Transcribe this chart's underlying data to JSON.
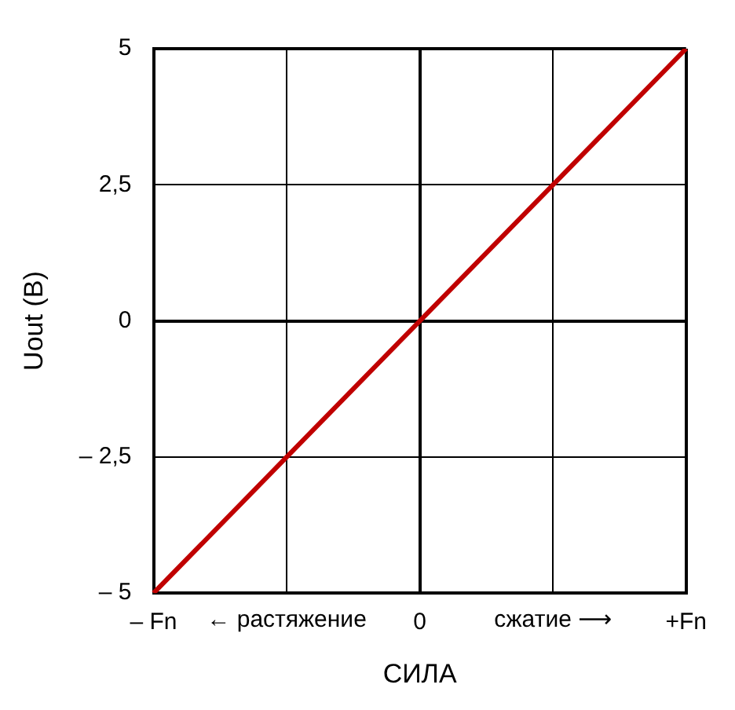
{
  "chart_data": {
    "type": "line",
    "xlabel": "СИЛА",
    "ylabel": "Uout (В)",
    "categories": [
      "– Fn",
      null,
      "0",
      null,
      "+Fn"
    ],
    "series": [
      {
        "color": "#c00000",
        "values": [
          -5,
          -2.5,
          0,
          2.5,
          5
        ]
      }
    ],
    "ylim": [
      -5,
      5
    ],
    "yticks": [
      {
        "value": -5,
        "label": "– 5"
      },
      {
        "value": -2.5,
        "label": "– 2,5"
      },
      0,
      {
        "value": 2.5,
        "label": "2,5"
      },
      5
    ],
    "annotations": [
      "← растяжение",
      "сжатие ⟶"
    ],
    "grid": true,
    "legend": false,
    "marker": "none",
    "line_style": "solid"
  }
}
